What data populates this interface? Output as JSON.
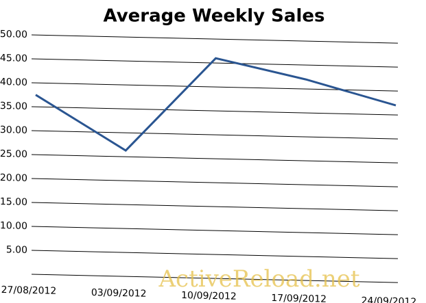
{
  "chart_data": {
    "type": "line",
    "title": "Average Weekly Sales",
    "categories": [
      "27/08/2012",
      "03/09/2012",
      "10/09/2012",
      "17/09/2012",
      "24/09/2012"
    ],
    "values": [
      37.5,
      26.3,
      46,
      42,
      37
    ],
    "color": "#2a5591",
    "ylim": [
      0,
      50
    ],
    "yticks": [
      {
        "value": 5,
        "label": "5.00"
      },
      {
        "value": 10,
        "label": "10.00"
      },
      {
        "value": 15,
        "label": "15.00"
      },
      {
        "value": 20,
        "label": "20.00"
      },
      {
        "value": 25,
        "label": "25.00"
      },
      {
        "value": 30,
        "label": "30.00"
      },
      {
        "value": 35,
        "label": "35.00"
      },
      {
        "value": 40,
        "label": "40.00"
      },
      {
        "value": 45,
        "label": "45.00"
      },
      {
        "value": 50,
        "label": "50.00"
      }
    ],
    "grid": true,
    "watermark": "ActiveReload.net"
  }
}
